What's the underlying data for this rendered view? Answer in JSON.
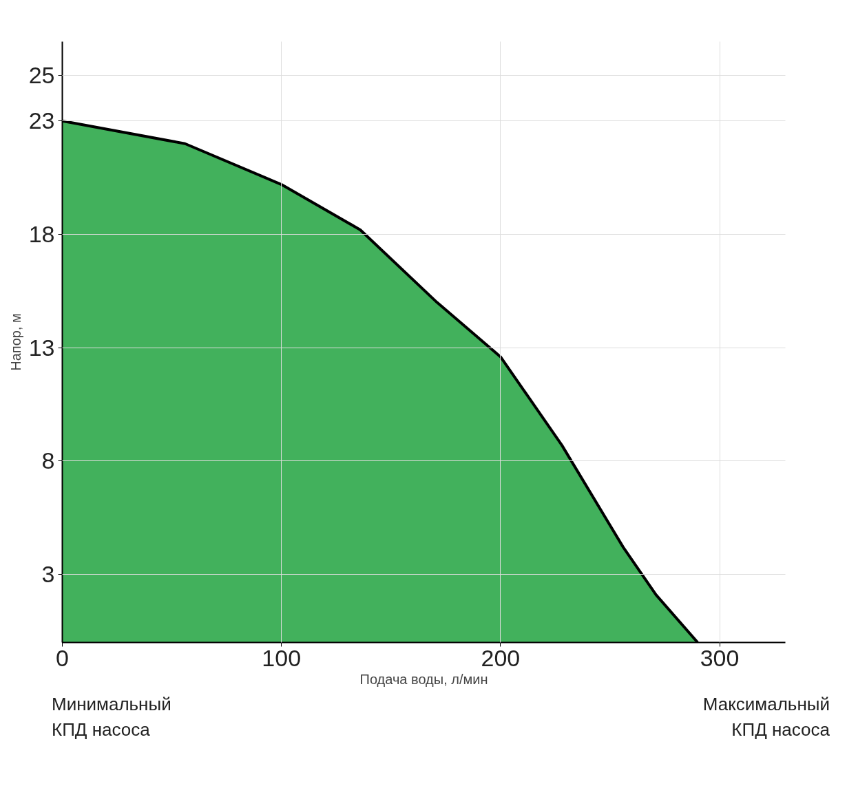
{
  "chart_data": {
    "type": "area",
    "xlabel": "Подача воды, л/мин",
    "ylabel": "Напор, м",
    "x": [
      0,
      56,
      100,
      136,
      171,
      200,
      228,
      256,
      271,
      290
    ],
    "series": [
      {
        "color": "#2ea84a",
        "values": [
          23,
          22,
          20.2,
          18.2,
          15,
          12.6,
          8.7,
          4.2,
          2.1,
          0
        ]
      }
    ],
    "xlim": [
      0,
      330
    ],
    "ylim": [
      0,
      26.5
    ],
    "xticks": [
      0,
      100,
      200,
      300
    ],
    "yticks": [
      3,
      8,
      13,
      18,
      23,
      25
    ],
    "grid": true,
    "annotations": [
      "Минимальный\nКПД насоса",
      "Максимальный\nКПД насоса"
    ]
  }
}
